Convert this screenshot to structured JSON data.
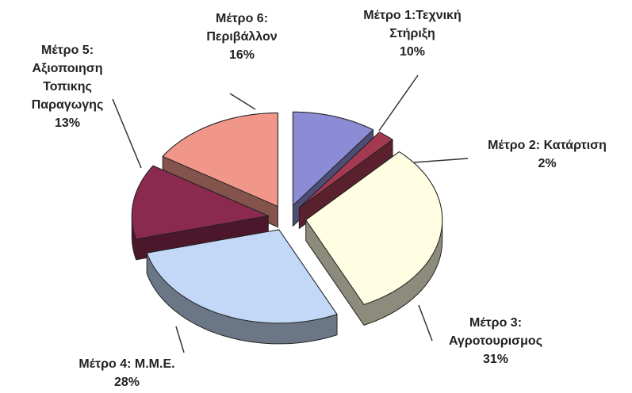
{
  "chart_data": {
    "type": "pie",
    "categories": [
      "Μέτρο 1:Τεχνική Στήριξη",
      "Μέτρο 2: Κατάρτιση",
      "Μέτρο 3: Αγροτουρισμος",
      "Μέτρο 4: Μ.Μ.Ε.",
      "Μέτρο 5: Αξιοποιηση Τοπικης Παραγωγης",
      "Μέτρο 6: Περιβάλλον"
    ],
    "values": [
      10,
      2,
      31,
      28,
      13,
      16
    ],
    "value_labels": [
      "10%",
      "2%",
      "31%",
      "28%",
      "13%",
      "16%"
    ],
    "colors": [
      "#8c8cd6",
      "#a33a52",
      "#fffde2",
      "#c2d8f6",
      "#8a2a4e",
      "#f0978a"
    ]
  }
}
